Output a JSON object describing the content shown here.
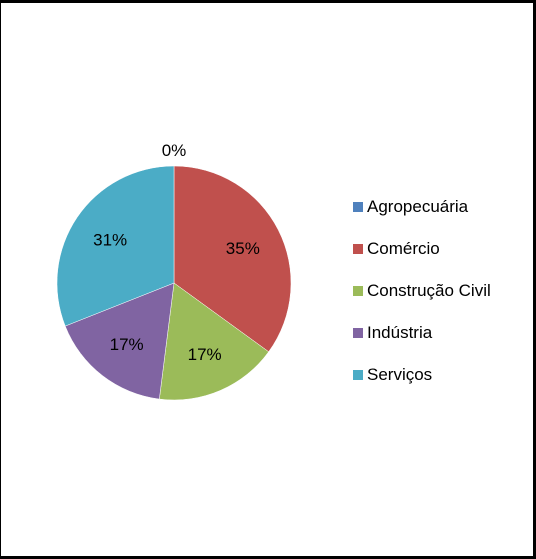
{
  "chart_data": {
    "type": "pie",
    "categories": [
      "Agropecuária",
      "Comércio",
      "Construção Civil",
      "Indústria",
      "Serviços"
    ],
    "values": [
      0,
      35,
      17,
      17,
      31
    ],
    "data_labels": [
      "0%",
      "35%",
      "17%",
      "17%",
      "31%"
    ],
    "colors": [
      "#4f81bd",
      "#c0504d",
      "#9bbb59",
      "#8064a2",
      "#4bacc6"
    ],
    "legend_position": "right",
    "start_angle_deg": 0,
    "direction": "clockwise"
  }
}
